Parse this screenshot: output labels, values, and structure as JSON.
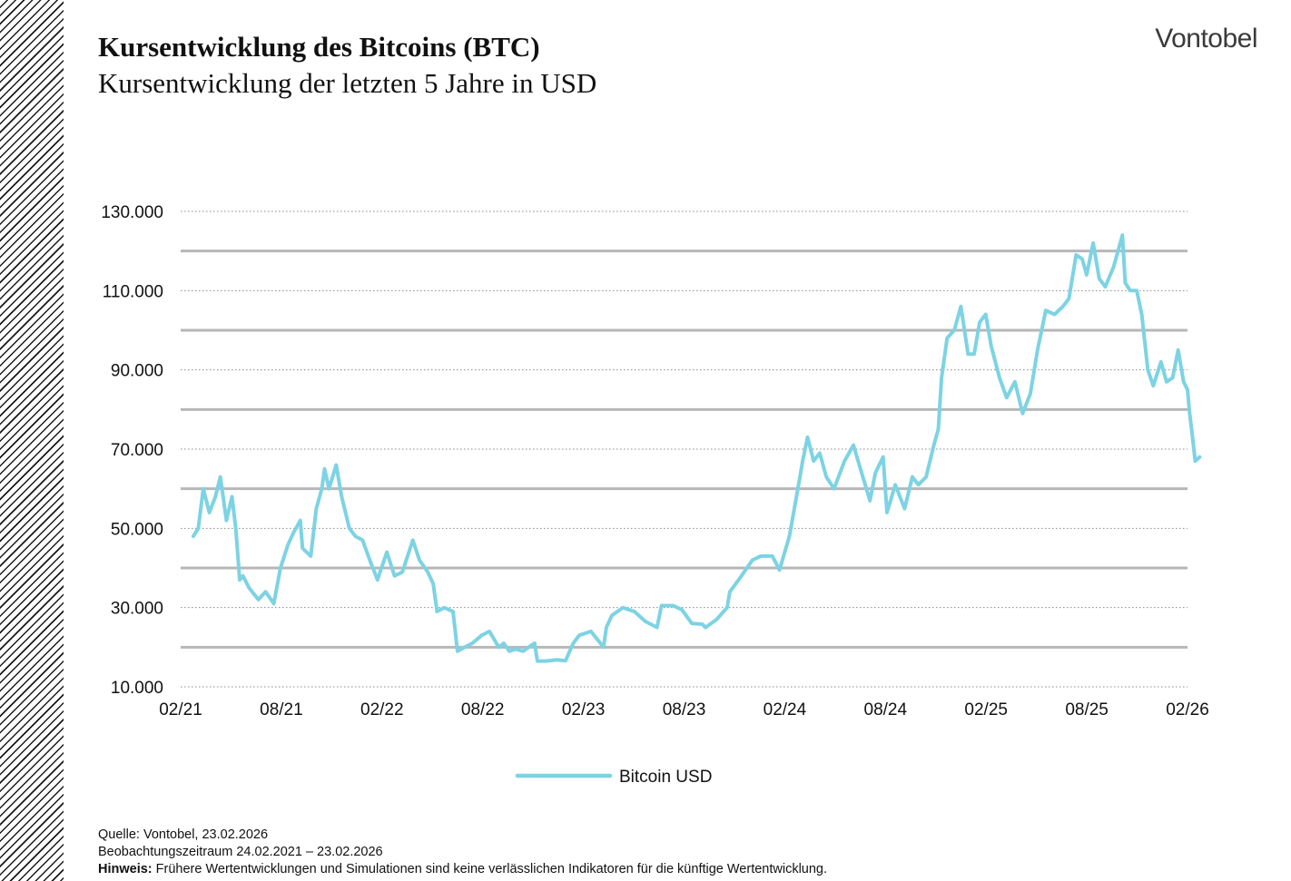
{
  "header": {
    "title": "Kursentwicklung des Bitcoins (BTC)",
    "subtitle": "Kursentwicklung der letzten 5 Jahre in USD",
    "logo": "Vontobel"
  },
  "chart_data": {
    "type": "line",
    "title": "Kursentwicklung des Bitcoins (BTC)",
    "subtitle": "Kursentwicklung der letzten 5 Jahre in USD",
    "xlabel": "",
    "ylabel": "",
    "ylim": [
      10000,
      130000
    ],
    "xlim": [
      "2021-02",
      "2026-02"
    ],
    "y_ticks": [
      "10.000",
      "30.000",
      "50.000",
      "70.000",
      "90.000",
      "110.000",
      "130.000"
    ],
    "x_ticks": [
      "02/21",
      "08/21",
      "02/22",
      "08/22",
      "02/23",
      "08/23",
      "02/24",
      "08/24",
      "02/25",
      "08/25",
      "02/26"
    ],
    "major_gridlines": [
      20000,
      40000,
      60000,
      80000,
      100000,
      120000
    ],
    "legend": {
      "position": "bottom-center"
    },
    "series": [
      {
        "name": "Bitcoin USD",
        "color": "#7dd3e3",
        "x": [
          "2021-02-24",
          "2021-03-05",
          "2021-03-14",
          "2021-03-25",
          "2021-04-05",
          "2021-04-14",
          "2021-04-25",
          "2021-05-05",
          "2021-05-12",
          "2021-05-19",
          "2021-05-25",
          "2021-06-05",
          "2021-06-22",
          "2021-07-05",
          "2021-07-20",
          "2021-08-01",
          "2021-08-15",
          "2021-08-25",
          "2021-09-06",
          "2021-09-10",
          "2021-09-25",
          "2021-10-05",
          "2021-10-15",
          "2021-10-20",
          "2021-10-28",
          "2021-11-10",
          "2021-11-20",
          "2021-12-04",
          "2021-12-15",
          "2021-12-28",
          "2022-01-10",
          "2022-01-24",
          "2022-02-10",
          "2022-02-24",
          "2022-03-10",
          "2022-03-29",
          "2022-04-10",
          "2022-04-25",
          "2022-05-05",
          "2022-05-12",
          "2022-05-25",
          "2022-06-10",
          "2022-06-18",
          "2022-07-01",
          "2022-07-15",
          "2022-08-01",
          "2022-08-15",
          "2022-09-01",
          "2022-09-10",
          "2022-09-20",
          "2022-10-01",
          "2022-10-15",
          "2022-10-30",
          "2022-11-05",
          "2022-11-10",
          "2022-11-25",
          "2022-12-15",
          "2022-12-31",
          "2023-01-14",
          "2023-01-25",
          "2023-02-15",
          "2023-03-10",
          "2023-03-15",
          "2023-03-25",
          "2023-04-14",
          "2023-05-05",
          "2023-05-25",
          "2023-06-15",
          "2023-06-23",
          "2023-07-14",
          "2023-07-30",
          "2023-08-17",
          "2023-09-05",
          "2023-09-11",
          "2023-10-01",
          "2023-10-20",
          "2023-10-25",
          "2023-11-10",
          "2023-12-05",
          "2023-12-20",
          "2024-01-10",
          "2024-01-23",
          "2024-02-10",
          "2024-02-28",
          "2024-03-05",
          "2024-03-14",
          "2024-03-25",
          "2024-04-05",
          "2024-04-17",
          "2024-05-01",
          "2024-05-20",
          "2024-06-05",
          "2024-06-20",
          "2024-07-05",
          "2024-07-15",
          "2024-07-29",
          "2024-08-05",
          "2024-08-20",
          "2024-09-06",
          "2024-09-20",
          "2024-10-01",
          "2024-10-15",
          "2024-10-29",
          "2024-11-06",
          "2024-11-12",
          "2024-11-22",
          "2024-12-05",
          "2024-12-17",
          "2024-12-30",
          "2025-01-10",
          "2025-01-20",
          "2025-01-31",
          "2025-02-10",
          "2025-02-25",
          "2025-03-10",
          "2025-03-25",
          "2025-04-08",
          "2025-04-22",
          "2025-05-05",
          "2025-05-20",
          "2025-06-05",
          "2025-06-20",
          "2025-07-01",
          "2025-07-14",
          "2025-07-25",
          "2025-08-02",
          "2025-08-14",
          "2025-08-25",
          "2025-09-05",
          "2025-09-20",
          "2025-10-06",
          "2025-10-11",
          "2025-10-20",
          "2025-11-01",
          "2025-11-10",
          "2025-11-21",
          "2025-12-01",
          "2025-12-15",
          "2025-12-25",
          "2026-01-05",
          "2026-01-15",
          "2026-01-25",
          "2026-02-01",
          "2026-02-05",
          "2026-02-10",
          "2026-02-15",
          "2026-02-23"
        ],
        "values": [
          48000,
          50000,
          60000,
          54000,
          58000,
          63000,
          52000,
          58000,
          50000,
          37000,
          38000,
          35000,
          32000,
          34000,
          31000,
          40000,
          46000,
          49000,
          52000,
          45000,
          43000,
          55000,
          60000,
          65000,
          60000,
          66000,
          58000,
          50000,
          48000,
          47000,
          42000,
          37000,
          44000,
          38000,
          39000,
          47000,
          42000,
          39000,
          36000,
          29000,
          30000,
          29000,
          19000,
          20000,
          21000,
          23000,
          24000,
          20000,
          21000,
          19000,
          19500,
          19000,
          20500,
          21000,
          16500,
          16500,
          16800,
          16600,
          21000,
          23000,
          24000,
          20000,
          25000,
          28000,
          30000,
          29000,
          26500,
          25000,
          30500,
          30500,
          29500,
          26000,
          25800,
          25000,
          27000,
          30000,
          34000,
          37000,
          42000,
          43000,
          43000,
          39500,
          48000,
          62000,
          67000,
          73000,
          67000,
          69000,
          63000,
          60000,
          67000,
          71000,
          64000,
          57000,
          64000,
          68000,
          54000,
          61000,
          55000,
          63000,
          61000,
          63000,
          71000,
          75000,
          88000,
          98000,
          100000,
          106000,
          94000,
          94000,
          102000,
          104000,
          96000,
          88000,
          83000,
          87000,
          79000,
          84000,
          95000,
          105000,
          104000,
          106000,
          108000,
          119000,
          118000,
          114000,
          122000,
          113000,
          111000,
          116000,
          124000,
          112000,
          110000,
          110000,
          104000,
          90000,
          86000,
          92000,
          87000,
          88000,
          95000,
          87000,
          85000,
          79000,
          73000,
          67000,
          68000
        ]
      }
    ]
  },
  "footer": {
    "source": "Quelle: Vontobel, 23.02.2026",
    "period": "Beobachtungszeitraum  24.02.2021 – 23.02.2026",
    "note_label": "Hinweis:",
    "note_text": " Frühere Wertentwicklungen und Simulationen sind keine verlässlichen Indikatoren für die künftige Wertentwicklung."
  }
}
